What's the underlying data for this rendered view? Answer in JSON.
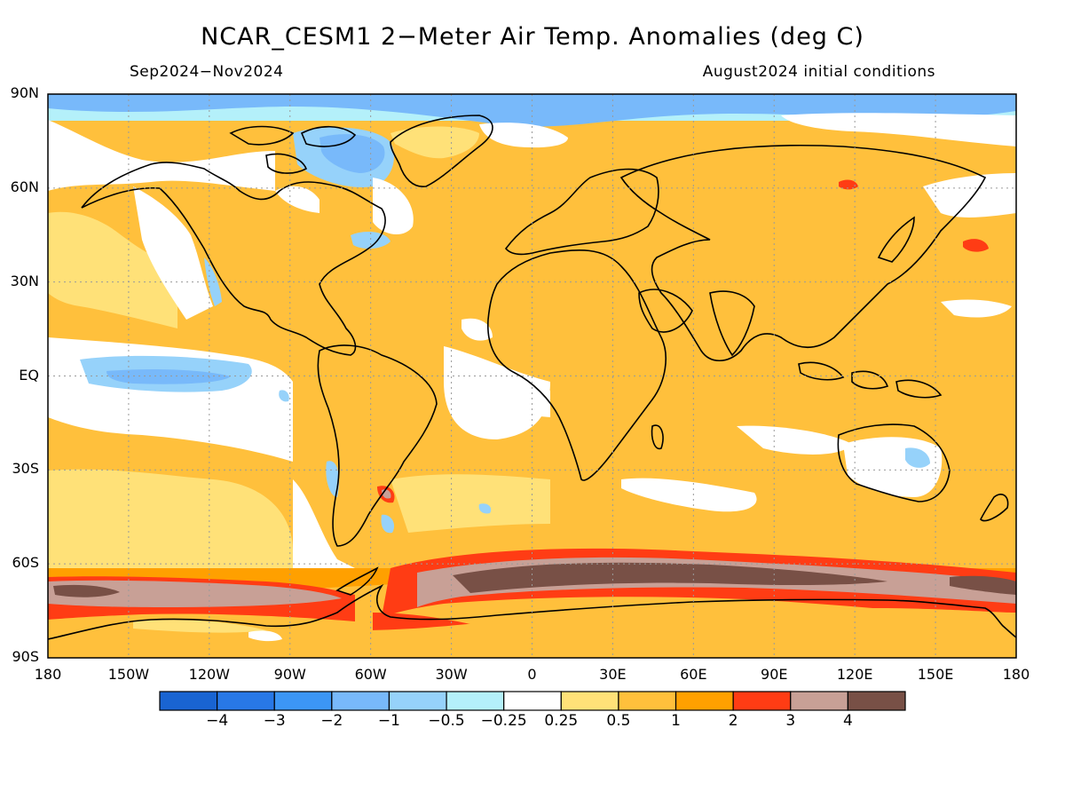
{
  "title": "NCAR_CESM1 2−Meter Air Temp. Anomalies (deg C)",
  "period": "Sep2024−Nov2024",
  "initial_conditions": "August2024 initial conditions",
  "lat_labels": [
    "90N",
    "60N",
    "30N",
    "EQ",
    "30S",
    "60S",
    "90S"
  ],
  "lon_labels": [
    "180",
    "150W",
    "120W",
    "90W",
    "60W",
    "30W",
    "0",
    "30E",
    "60E",
    "90E",
    "120E",
    "150E",
    "180"
  ],
  "colorbar": {
    "labels": [
      "−4",
      "−3",
      "−2",
      "−1",
      "−0.5",
      "−0.25",
      "0.25",
      "0.5",
      "1",
      "2",
      "3",
      "4"
    ],
    "colors": [
      "#1964d2",
      "#2878e6",
      "#3c96f5",
      "#78b9fa",
      "#96d2fa",
      "#b4f0fa",
      "#ffffff",
      "#ffe178",
      "#ffc03c",
      "#ffa000",
      "#ff3c14",
      "#c8a096",
      "#785046"
    ]
  },
  "colors": {
    "land_outline": "#000000",
    "gridline": "#9a9a9a"
  }
}
